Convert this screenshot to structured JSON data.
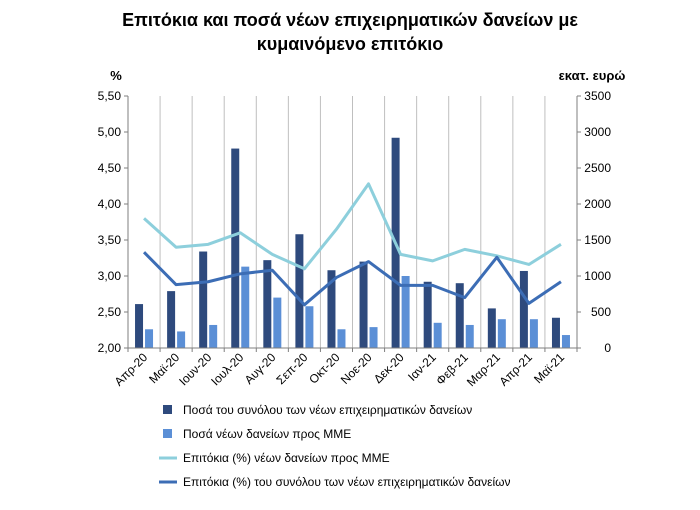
{
  "chart_data": {
    "type": "bar",
    "title_lines": [
      "Επιτόκια και ποσά νέων επιχειρηματικών δανείων με",
      "κυμαινόμενο επιτόκιο"
    ],
    "y_left_label": "%",
    "y_right_label": "εκατ. ευρώ",
    "y_left_lim": [
      2.0,
      5.5
    ],
    "y_left_ticks": [
      "2,00",
      "2,50",
      "3,00",
      "3,50",
      "4,00",
      "4,50",
      "5,00",
      "5,50"
    ],
    "y_right_lim": [
      0,
      3500
    ],
    "y_right_ticks": [
      "0",
      "500",
      "1000",
      "1500",
      "2000",
      "2500",
      "3000",
      "3500"
    ],
    "grid": "vertical",
    "legend_position": "bottom",
    "categories": [
      "Απρ-20",
      "Μαϊ-20",
      "Ιουν-20",
      "Ιουλ-20",
      "Αυγ-20",
      "Σεπ-20",
      "Οκτ-20",
      "Νοε-20",
      "Δεκ-20",
      "Ιαν-21",
      "Φεβ-21",
      "Μαρ-21",
      "Απρ-21",
      "Μαϊ-21"
    ],
    "series": [
      {
        "name": "Ποσά του συνόλου των νέων επιχειρηματικών δανείων",
        "type": "bar",
        "axis": "right",
        "color": "#2E4A7D",
        "values": [
          610,
          790,
          1340,
          2770,
          1220,
          1580,
          1080,
          1200,
          2920,
          920,
          900,
          550,
          1070,
          420
        ]
      },
      {
        "name": "Ποσά νέων δανείων προς ΜΜΕ",
        "type": "bar",
        "axis": "right",
        "color": "#5B8FD6",
        "values": [
          260,
          230,
          320,
          1130,
          700,
          580,
          260,
          290,
          1000,
          350,
          320,
          400,
          400,
          180
        ]
      },
      {
        "name": "Επιτόκια (%) νέων δανείων προς ΜΜΕ",
        "type": "line",
        "axis": "left",
        "color": "#8DCFDC",
        "values": [
          3.8,
          3.4,
          3.44,
          3.6,
          3.3,
          3.1,
          3.65,
          4.28,
          3.3,
          3.21,
          3.37,
          3.28,
          3.16,
          3.44
        ]
      },
      {
        "name": "Επιτόκια (%) του συνόλου των νέων επιχειρηματικών δανείων",
        "type": "line",
        "axis": "left",
        "color": "#3C6DB5",
        "values": [
          3.33,
          2.88,
          2.92,
          3.03,
          3.08,
          2.6,
          2.98,
          3.2,
          2.87,
          2.87,
          2.7,
          3.26,
          2.62,
          2.92
        ]
      }
    ]
  }
}
